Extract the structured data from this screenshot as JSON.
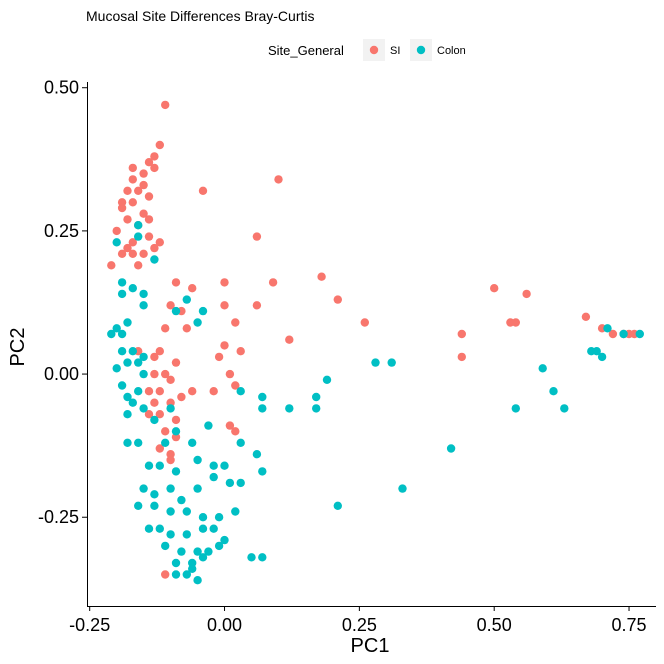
{
  "chart_data": {
    "type": "scatter",
    "title": "Mucosal Site Differences Bray-Curtis",
    "xlabel": "PC1",
    "ylabel": "PC2",
    "xlim": [
      -0.255,
      0.8
    ],
    "ylim": [
      -0.405,
      0.51
    ],
    "xticks": [
      -0.25,
      0.0,
      0.25,
      0.5,
      0.75
    ],
    "xtick_labels": [
      "-0.25",
      "0.00",
      "0.25",
      "0.50",
      "0.75"
    ],
    "yticks": [
      -0.25,
      0.0,
      0.25,
      0.5
    ],
    "ytick_labels": [
      "-0.25",
      "0.00",
      "0.25",
      "0.50"
    ],
    "grid": false,
    "legend": {
      "title": "Site_General",
      "position": "top",
      "entries": [
        "SI",
        "Colon"
      ]
    },
    "series": [
      {
        "name": "SI",
        "color": "#F8766D",
        "points": [
          [
            -0.11,
            0.47
          ],
          [
            -0.12,
            0.4
          ],
          [
            -0.17,
            0.36
          ],
          [
            -0.14,
            0.37
          ],
          [
            -0.13,
            0.38
          ],
          [
            -0.17,
            0.34
          ],
          [
            -0.15,
            0.35
          ],
          [
            -0.15,
            0.33
          ],
          [
            -0.13,
            0.36
          ],
          [
            -0.16,
            0.32
          ],
          [
            -0.18,
            0.32
          ],
          [
            -0.14,
            0.31
          ],
          [
            -0.17,
            0.3
          ],
          [
            -0.19,
            0.3
          ],
          [
            -0.15,
            0.28
          ],
          [
            -0.14,
            0.27
          ],
          [
            -0.16,
            0.26
          ],
          [
            -0.18,
            0.27
          ],
          [
            -0.19,
            0.29
          ],
          [
            -0.14,
            0.24
          ],
          [
            -0.12,
            0.23
          ],
          [
            -0.13,
            0.22
          ],
          [
            -0.17,
            0.23
          ],
          [
            -0.18,
            0.22
          ],
          [
            -0.15,
            0.21
          ],
          [
            -0.17,
            0.21
          ],
          [
            -0.19,
            0.21
          ],
          [
            -0.21,
            0.19
          ],
          [
            -0.2,
            0.25
          ],
          [
            -0.16,
            0.19
          ],
          [
            -0.04,
            0.32
          ],
          [
            0.1,
            0.34
          ],
          [
            0.06,
            0.24
          ],
          [
            0.09,
            0.16
          ],
          [
            0.18,
            0.17
          ],
          [
            0.21,
            0.13
          ],
          [
            0.26,
            0.09
          ],
          [
            -0.06,
            0.15
          ],
          [
            0.0,
            0.16
          ],
          [
            -0.09,
            0.16
          ],
          [
            -0.08,
            0.11
          ],
          [
            -0.1,
            0.12
          ],
          [
            0.0,
            0.12
          ],
          [
            0.06,
            0.12
          ],
          [
            0.02,
            0.09
          ],
          [
            -0.07,
            0.08
          ],
          [
            -0.11,
            0.08
          ],
          [
            0.12,
            0.06
          ],
          [
            0.03,
            0.04
          ],
          [
            -0.09,
            0.02
          ],
          [
            -0.12,
            0.04
          ],
          [
            -0.16,
            0.04
          ],
          [
            -0.13,
            0.03
          ],
          [
            -0.11,
            0.0
          ],
          [
            -0.13,
            0.0
          ],
          [
            -0.1,
            -0.01
          ],
          [
            -0.12,
            -0.03
          ],
          [
            -0.14,
            -0.03
          ],
          [
            -0.08,
            -0.04
          ],
          [
            -0.06,
            -0.03
          ],
          [
            -0.02,
            -0.03
          ],
          [
            0.01,
            0.0
          ],
          [
            0.02,
            -0.02
          ],
          [
            -0.01,
            0.03
          ],
          [
            -0.13,
            -0.05
          ],
          [
            -0.1,
            -0.05
          ],
          [
            -0.12,
            -0.07
          ],
          [
            -0.14,
            -0.07
          ],
          [
            -0.09,
            -0.08
          ],
          [
            -0.11,
            -0.1
          ],
          [
            -0.09,
            -0.11
          ],
          [
            0.01,
            -0.09
          ],
          [
            0.02,
            -0.1
          ],
          [
            -0.12,
            -0.13
          ],
          [
            -0.1,
            -0.14
          ],
          [
            -0.1,
            -0.15
          ],
          [
            0.0,
            0.05
          ],
          [
            0.5,
            0.15
          ],
          [
            0.54,
            0.09
          ],
          [
            0.53,
            0.09
          ],
          [
            0.56,
            0.14
          ],
          [
            0.44,
            0.07
          ],
          [
            0.44,
            0.03
          ],
          [
            0.67,
            0.1
          ],
          [
            0.7,
            0.08
          ],
          [
            0.72,
            0.07
          ],
          [
            0.74,
            0.07
          ],
          [
            0.75,
            0.07
          ],
          [
            0.76,
            0.07
          ],
          [
            -0.11,
            -0.35
          ]
        ]
      },
      {
        "name": "Colon",
        "color": "#00BFC4",
        "points": [
          [
            -0.2,
            0.23
          ],
          [
            -0.16,
            0.26
          ],
          [
            -0.16,
            0.24
          ],
          [
            -0.13,
            0.2
          ],
          [
            -0.19,
            0.16
          ],
          [
            -0.17,
            0.15
          ],
          [
            -0.15,
            0.14
          ],
          [
            -0.19,
            0.14
          ],
          [
            -0.15,
            0.12
          ],
          [
            -0.07,
            0.13
          ],
          [
            -0.04,
            0.11
          ],
          [
            -0.09,
            0.11
          ],
          [
            -0.05,
            0.09
          ],
          [
            -0.18,
            0.09
          ],
          [
            -0.2,
            0.08
          ],
          [
            -0.19,
            0.07
          ],
          [
            -0.21,
            0.07
          ],
          [
            -0.19,
            0.04
          ],
          [
            -0.17,
            0.04
          ],
          [
            -0.15,
            0.03
          ],
          [
            -0.18,
            0.02
          ],
          [
            -0.16,
            0.02
          ],
          [
            -0.15,
            0.0
          ],
          [
            -0.2,
            0.01
          ],
          [
            -0.19,
            -0.02
          ],
          [
            -0.18,
            -0.04
          ],
          [
            -0.16,
            -0.03
          ],
          [
            -0.17,
            -0.05
          ],
          [
            -0.18,
            -0.07
          ],
          [
            -0.15,
            -0.06
          ],
          [
            -0.13,
            -0.08
          ],
          [
            -0.1,
            -0.06
          ],
          [
            -0.09,
            -0.1
          ],
          [
            -0.06,
            -0.12
          ],
          [
            -0.03,
            -0.09
          ],
          [
            0.03,
            -0.03
          ],
          [
            0.07,
            -0.04
          ],
          [
            0.07,
            -0.06
          ],
          [
            0.12,
            -0.06
          ],
          [
            0.17,
            -0.04
          ],
          [
            0.17,
            -0.06
          ],
          [
            0.19,
            -0.01
          ],
          [
            0.28,
            0.02
          ],
          [
            0.31,
            0.02
          ],
          [
            0.42,
            -0.13
          ],
          [
            0.33,
            -0.2
          ],
          [
            0.21,
            -0.23
          ],
          [
            0.54,
            -0.06
          ],
          [
            0.59,
            0.01
          ],
          [
            0.61,
            -0.03
          ],
          [
            0.63,
            -0.06
          ],
          [
            0.68,
            0.04
          ],
          [
            0.69,
            0.04
          ],
          [
            0.7,
            0.03
          ],
          [
            0.71,
            0.08
          ],
          [
            0.74,
            0.07
          ],
          [
            0.77,
            0.07
          ],
          [
            -0.18,
            -0.12
          ],
          [
            -0.16,
            -0.12
          ],
          [
            -0.11,
            -0.12
          ],
          [
            -0.14,
            -0.16
          ],
          [
            -0.12,
            -0.16
          ],
          [
            -0.09,
            -0.17
          ],
          [
            -0.05,
            -0.15
          ],
          [
            -0.02,
            -0.16
          ],
          [
            0.0,
            -0.16
          ],
          [
            0.03,
            -0.12
          ],
          [
            0.06,
            -0.14
          ],
          [
            0.07,
            -0.17
          ],
          [
            -0.15,
            -0.2
          ],
          [
            -0.13,
            -0.21
          ],
          [
            -0.1,
            -0.2
          ],
          [
            -0.08,
            -0.22
          ],
          [
            -0.05,
            -0.2
          ],
          [
            -0.02,
            -0.18
          ],
          [
            0.01,
            -0.19
          ],
          [
            0.03,
            -0.19
          ],
          [
            -0.16,
            -0.23
          ],
          [
            -0.13,
            -0.23
          ],
          [
            -0.1,
            -0.24
          ],
          [
            -0.07,
            -0.24
          ],
          [
            -0.04,
            -0.25
          ],
          [
            -0.01,
            -0.25
          ],
          [
            0.02,
            -0.24
          ],
          [
            -0.14,
            -0.27
          ],
          [
            -0.12,
            -0.27
          ],
          [
            -0.1,
            -0.28
          ],
          [
            -0.07,
            -0.28
          ],
          [
            -0.04,
            -0.27
          ],
          [
            -0.02,
            -0.27
          ],
          [
            0.0,
            -0.29
          ],
          [
            -0.11,
            -0.3
          ],
          [
            -0.08,
            -0.31
          ],
          [
            -0.05,
            -0.31
          ],
          [
            -0.03,
            -0.31
          ],
          [
            -0.01,
            -0.3
          ],
          [
            -0.09,
            -0.33
          ],
          [
            -0.06,
            -0.33
          ],
          [
            -0.04,
            -0.32
          ],
          [
            0.05,
            -0.32
          ],
          [
            0.07,
            -0.32
          ],
          [
            -0.09,
            -0.35
          ],
          [
            -0.07,
            -0.35
          ],
          [
            -0.05,
            -0.36
          ],
          [
            -0.06,
            -0.34
          ]
        ]
      }
    ]
  }
}
